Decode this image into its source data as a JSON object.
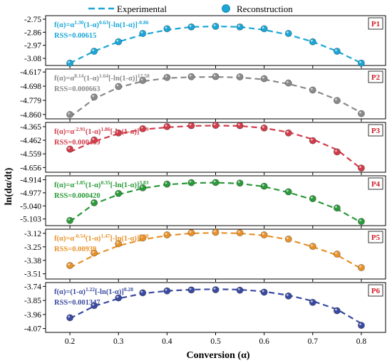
{
  "legend": {
    "experimental_label": "Experimental",
    "reconstruction_label": "Reconstruction"
  },
  "chart_data": {
    "type": "line",
    "xlabel": "Conversion (α)",
    "ylabel": "ln(dα/dt)",
    "xlim": [
      0.15,
      0.85
    ],
    "x_ticks": [
      "0.2",
      "0.3",
      "0.4",
      "0.5",
      "0.6",
      "0.7",
      "0.8"
    ],
    "x_tick_values": [
      0.2,
      0.3,
      0.4,
      0.5,
      0.6,
      0.7,
      0.8
    ],
    "panels": [
      {
        "tag": "P1",
        "color": "#1aa6d6",
        "formula_plain": "f(α)=α^1.30(1-α)^0.63[-ln(1-α)]^-0.86",
        "formula_parts": [
          [
            "f(α)=α",
            ""
          ],
          [
            "1.30",
            "sup"
          ],
          [
            "(1-α)",
            ""
          ],
          [
            "0.63",
            "sup"
          ],
          [
            "[-ln(1-α)]",
            ""
          ],
          [
            "-0.86",
            "sup"
          ]
        ],
        "rss": "RSS=0.00615",
        "ylim": [
          -3.14,
          -2.72
        ],
        "yticks": [
          "-2.75",
          "-2.86",
          "-2.97",
          "-3.08"
        ],
        "ytick_values": [
          -2.75,
          -2.86,
          -2.97,
          -3.08
        ],
        "x": [
          0.2,
          0.25,
          0.3,
          0.35,
          0.4,
          0.45,
          0.5,
          0.55,
          0.6,
          0.65,
          0.7,
          0.75,
          0.8
        ],
        "experimental": [
          -3.12,
          -3.02,
          -2.94,
          -2.88,
          -2.84,
          -2.815,
          -2.81,
          -2.815,
          -2.84,
          -2.88,
          -2.94,
          -3.02,
          -3.12
        ],
        "reconstruction": [
          -3.12,
          -3.02,
          -2.94,
          -2.87,
          -2.83,
          -2.815,
          -2.81,
          -2.815,
          -2.83,
          -2.87,
          -2.94,
          -3.02,
          -3.12
        ]
      },
      {
        "tag": "P2",
        "color": "#8a8a8a",
        "formula_plain": "f(α)=α^8.14(1-α)^1.64[-ln(1-α)]^12.58",
        "formula_parts": [
          [
            "f(α)=α",
            ""
          ],
          [
            "8.14",
            "sup"
          ],
          [
            "(1-α)",
            ""
          ],
          [
            "1.64",
            "sup"
          ],
          [
            "[-ln(1-α)]",
            ""
          ],
          [
            "12.58",
            "sup"
          ]
        ],
        "rss": "RSS=0.000663",
        "ylim": [
          -4.885,
          -4.6
        ],
        "yticks": [
          "-4.617",
          "-4.698",
          "-4.779",
          "-4.860"
        ],
        "ytick_values": [
          -4.617,
          -4.698,
          -4.779,
          -4.86
        ],
        "x": [
          0.2,
          0.25,
          0.3,
          0.35,
          0.4,
          0.45,
          0.5,
          0.55,
          0.6,
          0.65,
          0.7,
          0.75,
          0.8
        ],
        "experimental": [
          -4.875,
          -4.77,
          -4.705,
          -4.67,
          -4.652,
          -4.646,
          -4.645,
          -4.648,
          -4.66,
          -4.685,
          -4.72,
          -4.775,
          -4.85
        ],
        "reconstruction": [
          -4.86,
          -4.76,
          -4.7,
          -4.665,
          -4.648,
          -4.644,
          -4.643,
          -4.645,
          -4.655,
          -4.68,
          -4.72,
          -4.78,
          -4.855
        ]
      },
      {
        "tag": "P3",
        "color": "#d23c4a",
        "formula_plain": "f(α)=α^-2.91(1-α)^1.86[-ln(1-α)]^3.39",
        "formula_parts": [
          [
            "f(α)=α",
            ""
          ],
          [
            "-2.91",
            "sup"
          ],
          [
            "(1-α)",
            ""
          ],
          [
            "1.86",
            "sup"
          ],
          [
            "[-ln(1-α)]",
            ""
          ],
          [
            "3.39",
            "sup"
          ]
        ],
        "rss": "RSS=0.000469",
        "ylim": [
          -4.69,
          -4.335
        ],
        "yticks": [
          "-4.365",
          "-4.462",
          "-4.559",
          "-4.656"
        ],
        "ytick_values": [
          -4.365,
          -4.462,
          -4.559,
          -4.656
        ],
        "x": [
          0.2,
          0.25,
          0.3,
          0.35,
          0.4,
          0.45,
          0.5,
          0.55,
          0.6,
          0.65,
          0.7,
          0.75,
          0.8
        ],
        "experimental": [
          -4.545,
          -4.47,
          -4.415,
          -4.385,
          -4.37,
          -4.36,
          -4.358,
          -4.36,
          -4.375,
          -4.405,
          -4.455,
          -4.53,
          -4.665
        ],
        "reconstruction": [
          -4.525,
          -4.46,
          -4.41,
          -4.38,
          -4.365,
          -4.358,
          -4.356,
          -4.358,
          -4.375,
          -4.41,
          -4.465,
          -4.545,
          -4.66
        ]
      },
      {
        "tag": "P4",
        "color": "#2a9a3a",
        "formula_plain": "f(α)=α^-1.85(1-α)^0.35[-ln(1-α)]^3.83",
        "formula_parts": [
          [
            "f(α)=α",
            ""
          ],
          [
            "-1.85",
            "sup"
          ],
          [
            "(1-α)",
            ""
          ],
          [
            "0.35",
            "sup"
          ],
          [
            "[-ln(1-α)]",
            ""
          ],
          [
            "3.83",
            "sup"
          ]
        ],
        "rss": "RSS=0.000420",
        "ylim": [
          -5.135,
          -4.895
        ],
        "yticks": [
          "-4.914",
          "-4.977",
          "-5.040",
          "-5.103"
        ],
        "ytick_values": [
          -4.914,
          -4.977,
          -5.04,
          -5.103
        ],
        "x": [
          0.2,
          0.25,
          0.3,
          0.35,
          0.4,
          0.45,
          0.5,
          0.55,
          0.6,
          0.65,
          0.7,
          0.75,
          0.8
        ],
        "experimental": [
          -5.115,
          -5.03,
          -4.985,
          -4.955,
          -4.937,
          -4.93,
          -4.928,
          -4.932,
          -4.947,
          -4.975,
          -5.01,
          -5.055,
          -5.12
        ],
        "reconstruction": [
          -5.11,
          -5.025,
          -4.98,
          -4.953,
          -4.935,
          -4.928,
          -4.927,
          -4.93,
          -4.945,
          -4.972,
          -5.005,
          -5.05,
          -5.115
        ]
      },
      {
        "tag": "P5",
        "color": "#e8922a",
        "formula_plain": "f(α)=α^-0.54(1-α)^1.47[-ln(1-α)]^0.98",
        "formula_parts": [
          [
            "f(α)=α",
            ""
          ],
          [
            "-0.54",
            "sup"
          ],
          [
            "(1-α)",
            ""
          ],
          [
            "1.47",
            "sup"
          ],
          [
            "[-ln(1-α)]",
            ""
          ],
          [
            "0.98",
            "sup"
          ]
        ],
        "rss": "RSS=0.00939",
        "ylim": [
          -3.56,
          -3.08
        ],
        "yticks": [
          "-3.12",
          "-3.25",
          "-3.38",
          "-3.51"
        ],
        "ytick_values": [
          -3.12,
          -3.25,
          -3.38,
          -3.51
        ],
        "x": [
          0.2,
          0.25,
          0.3,
          0.35,
          0.4,
          0.45,
          0.5,
          0.55,
          0.6,
          0.65,
          0.7,
          0.75,
          0.8
        ],
        "experimental": [
          -3.45,
          -3.33,
          -3.24,
          -3.18,
          -3.14,
          -3.12,
          -3.115,
          -3.12,
          -3.14,
          -3.18,
          -3.25,
          -3.33,
          -3.46
        ],
        "reconstruction": [
          -3.43,
          -3.31,
          -3.22,
          -3.165,
          -3.135,
          -3.115,
          -3.11,
          -3.115,
          -3.135,
          -3.175,
          -3.245,
          -3.32,
          -3.45
        ]
      },
      {
        "tag": "P6",
        "color": "#3a4aa0",
        "formula_plain": "f(α)=(1-α)^1.22[-ln(1-α)]^0.28",
        "formula_parts": [
          [
            "f(α)=(1-α)",
            ""
          ],
          [
            "1.22",
            "sup"
          ],
          [
            "[-ln(1-α)]",
            ""
          ],
          [
            "0.28",
            "sup"
          ]
        ],
        "rss": "RSS=0.001347",
        "ylim": [
          -4.1,
          -3.71
        ],
        "yticks": [
          "-3.74",
          "-3.85",
          "-3.96",
          "-4.07"
        ],
        "ytick_values": [
          -3.74,
          -3.85,
          -3.96,
          -4.07
        ],
        "x": [
          0.2,
          0.25,
          0.3,
          0.35,
          0.4,
          0.45,
          0.5,
          0.55,
          0.6,
          0.65,
          0.7,
          0.75,
          0.8
        ],
        "experimental": [
          -3.99,
          -3.895,
          -3.835,
          -3.795,
          -3.775,
          -3.765,
          -3.762,
          -3.765,
          -3.78,
          -3.81,
          -3.855,
          -3.92,
          -4.03
        ],
        "reconstruction": [
          -3.985,
          -3.89,
          -3.83,
          -3.79,
          -3.775,
          -3.768,
          -3.766,
          -3.77,
          -3.785,
          -3.815,
          -3.865,
          -3.93,
          -4.045
        ]
      }
    ]
  }
}
